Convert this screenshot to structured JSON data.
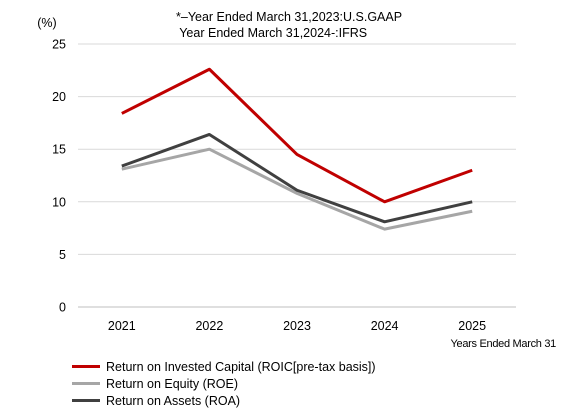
{
  "notes": [
    "*–Year Ended March 31,2023:U.S.GAAP",
    " Year Ended March 31,2024-:IFRS"
  ],
  "chart_data": {
    "type": "line",
    "title": "",
    "xlabel": "Years Ended March 31",
    "ylabel": "(%)",
    "categories": [
      "2021",
      "2022",
      "2023",
      "2024",
      "2025"
    ],
    "ylim": [
      0,
      25
    ],
    "yticks": [
      "0",
      "5",
      "10",
      "15",
      "20",
      "25"
    ],
    "grid": true,
    "legend_position": "bottom-left",
    "series": [
      {
        "name": "Return on Invested Capital (ROIC[pre-tax basis])",
        "color": "#c00000",
        "values": [
          18.4,
          22.6,
          14.5,
          10.0,
          13.0
        ]
      },
      {
        "name": "Return on Equity (ROE)",
        "color": "#a6a6a6",
        "values": [
          13.1,
          15.0,
          10.8,
          7.4,
          9.1
        ]
      },
      {
        "name": "Return on Assets (ROA)",
        "color": "#404040",
        "values": [
          13.4,
          16.4,
          11.1,
          8.1,
          10.0
        ]
      }
    ]
  }
}
